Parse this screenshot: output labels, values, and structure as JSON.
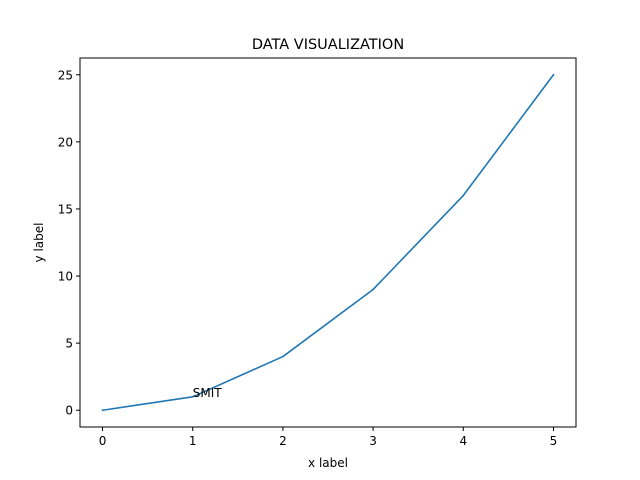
{
  "chart_data": {
    "type": "line",
    "title": "DATA VISUALIZATION",
    "xlabel": "x label",
    "ylabel": "y label",
    "xlim": [
      -0.25,
      5.25
    ],
    "ylim": [
      -1.25,
      26.25
    ],
    "xticks": [
      0,
      1,
      2,
      3,
      4,
      5
    ],
    "yticks": [
      0,
      5,
      10,
      15,
      20,
      25
    ],
    "grid": false,
    "series": [
      {
        "color": "#1f77b4",
        "x": [
          0,
          1,
          2,
          3,
          4,
          5
        ],
        "y": [
          0,
          1,
          4,
          9,
          16,
          25
        ]
      }
    ],
    "annotations": [
      {
        "text": "SMIT",
        "x": 1,
        "y": 1
      }
    ]
  }
}
